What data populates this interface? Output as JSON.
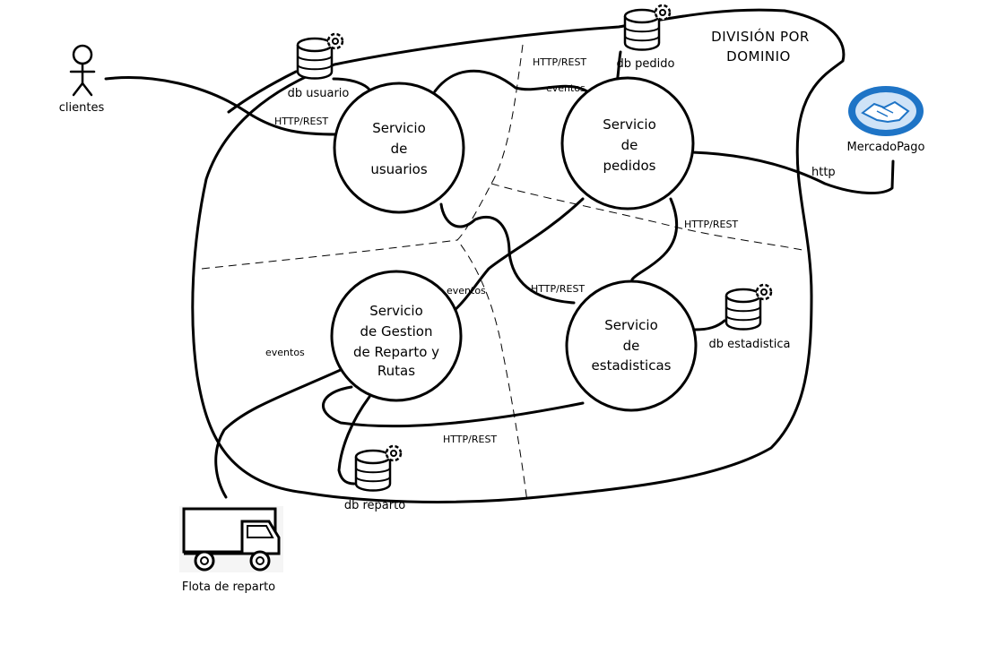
{
  "title": {
    "line1": "DIVISIÓN POR",
    "line2": "DOMINIO"
  },
  "actors": {
    "clientes": "clientes"
  },
  "services": {
    "usuarios": [
      "Servicio",
      "de",
      "usuarios"
    ],
    "pedidos": [
      "Servicio",
      "de",
      "pedidos"
    ],
    "reparto": [
      "Servicio",
      "de Gestion",
      "de Reparto y",
      "Rutas"
    ],
    "estadisticas": [
      "Servicio",
      "de",
      "estadisticas"
    ]
  },
  "databases": {
    "usuario": "db usuario",
    "pedido": "db pedido",
    "estadistica": "db estadistica",
    "reparto": "db reparto"
  },
  "external": {
    "mercadopago": "MercadoPago",
    "flota": "Flota de reparto"
  },
  "connections": {
    "clientes_usuarios": "HTTP/REST",
    "usuarios_pedidos": "HTTP/REST",
    "usuarios_pedidos_eventos": "eventos",
    "pedidos_mercadopago": "http",
    "pedidos_estadisticas": "HTTP/REST",
    "usuarios_estadisticas": "HTTP/REST",
    "pedidos_reparto_eventos": "eventos",
    "reparto_flota_eventos": "eventos",
    "reparto_estadisticas": "HTTP/REST"
  },
  "colors": {
    "ink": "#000000",
    "mercadopago_blue": "#1e74c6",
    "mercadopago_light": "#cfe3f7"
  }
}
